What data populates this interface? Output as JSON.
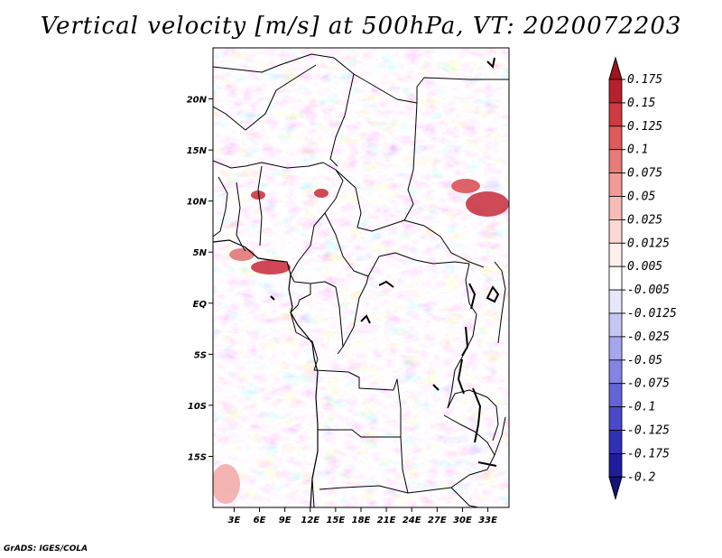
{
  "title": "Vertical velocity [m/s] at 500hPa, VT: 2020072203",
  "credit": "GrADS: IGES/COLA",
  "map": {
    "lat_range": [
      -20,
      25
    ],
    "lon_range": [
      0.5,
      35.5
    ],
    "lat_ticks": [
      "20N",
      "15N",
      "10N",
      "5N",
      "EQ",
      "5S",
      "10S",
      "15S"
    ],
    "lat_tick_values": [
      20,
      15,
      10,
      5,
      0,
      -5,
      -10,
      -15
    ],
    "lon_ticks": [
      "3E",
      "6E",
      "9E",
      "12E",
      "15E",
      "18E",
      "21E",
      "24E",
      "27E",
      "30E",
      "33E"
    ],
    "lon_tick_values": [
      3,
      6,
      9,
      12,
      15,
      18,
      21,
      24,
      27,
      30,
      33
    ]
  },
  "colorbar": {
    "labels": [
      "0.175",
      "0.15",
      "0.125",
      "0.1",
      "0.075",
      "0.05",
      "0.025",
      "0.0125",
      "0.005",
      "-0.005",
      "-0.0125",
      "-0.025",
      "-0.05",
      "-0.075",
      "-0.1",
      "-0.125",
      "-0.175",
      "-0.2"
    ],
    "colors": [
      "#a0141e",
      "#b8202c",
      "#cf3a40",
      "#df5a5a",
      "#e87a78",
      "#f29a96",
      "#f8bcb8",
      "#fcd8d4",
      "#fff0ee",
      "#ffffff",
      "#e6e6fa",
      "#c6c6f4",
      "#a6a6ee",
      "#8484e4",
      "#6464d8",
      "#4848c8",
      "#3030b4",
      "#1e1e9c",
      "#141478"
    ]
  },
  "chart_data": {
    "type": "heatmap",
    "title": "Vertical velocity [m/s] at 500hPa, VT: 2020072203",
    "variable": "Vertical velocity",
    "units": "m/s",
    "level": "500hPa",
    "valid_time": "2020072203",
    "x_ticks": [
      "3E",
      "6E",
      "9E",
      "12E",
      "15E",
      "18E",
      "21E",
      "24E",
      "27E",
      "30E",
      "33E"
    ],
    "y_ticks": [
      "20N",
      "15N",
      "10N",
      "5N",
      "EQ",
      "5S",
      "10S",
      "15S"
    ],
    "xlim": [
      0.5,
      35.5
    ],
    "ylim": [
      -20,
      25
    ],
    "color_levels": [
      -0.2,
      -0.175,
      -0.125,
      -0.1,
      -0.075,
      -0.05,
      -0.025,
      -0.0125,
      -0.005,
      0.005,
      0.0125,
      0.025,
      0.05,
      0.075,
      0.1,
      0.125,
      0.15,
      0.175
    ]
  }
}
